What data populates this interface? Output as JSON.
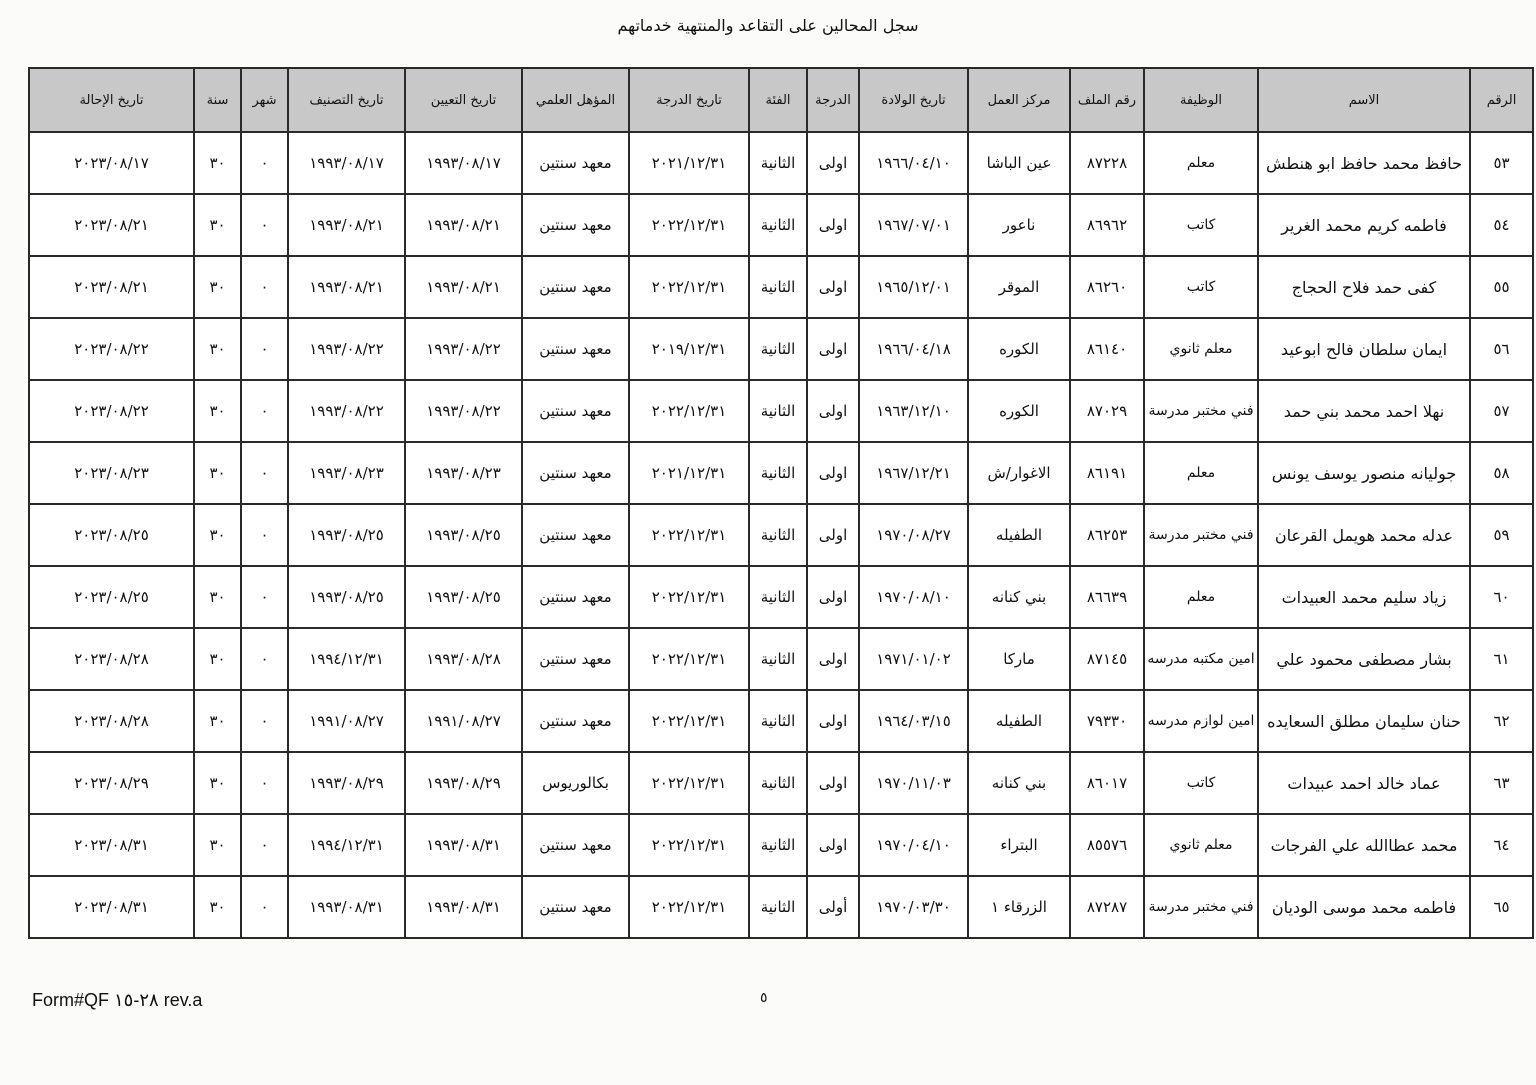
{
  "title": "سجل المحالين على التقاعد والمنتهية خدماتهم",
  "columns": [
    "الرقم",
    "الاسم",
    "الوظيفة",
    "رقم الملف",
    "مركز العمل",
    "تاريخ الولادة",
    "الدرجة",
    "الفئة",
    "تاريخ الدرجة",
    "المؤهل العلمي",
    "تاريخ التعيين",
    "تاريخ التصنيف",
    "شهر",
    "سنة",
    "تاريخ الإحالة"
  ],
  "rows": [
    [
      "٥٣",
      "حافظ محمد حافظ ابو هنطش",
      "معلم",
      "٨٧٢٢٨",
      "عين الباشا",
      "١٩٦٦/٠٤/١٠",
      "اولى",
      "الثانية",
      "٢٠٢١/١٢/٣١",
      "معهد سنتين",
      "١٩٩٣/٠٨/١٧",
      "١٩٩٣/٠٨/١٧",
      "٠",
      "٣٠",
      "٢٠٢٣/٠٨/١٧"
    ],
    [
      "٥٤",
      "فاطمه كريم محمد الغرير",
      "كاتب",
      "٨٦٩٦٢",
      "ناعور",
      "١٩٦٧/٠٧/٠١",
      "اولى",
      "الثانية",
      "٢٠٢٢/١٢/٣١",
      "معهد سنتين",
      "١٩٩٣/٠٨/٢١",
      "١٩٩٣/٠٨/٢١",
      "٠",
      "٣٠",
      "٢٠٢٣/٠٨/٢١"
    ],
    [
      "٥٥",
      "كفى حمد فلاح الحجاج",
      "كاتب",
      "٨٦٢٦٠",
      "الموقر",
      "١٩٦٥/١٢/٠١",
      "اولى",
      "الثانية",
      "٢٠٢٢/١٢/٣١",
      "معهد سنتين",
      "١٩٩٣/٠٨/٢١",
      "١٩٩٣/٠٨/٢١",
      "٠",
      "٣٠",
      "٢٠٢٣/٠٨/٢١"
    ],
    [
      "٥٦",
      "ايمان سلطان فالح ابوعيد",
      "معلم ثانوي",
      "٨٦١٤٠",
      "الكوره",
      "١٩٦٦/٠٤/١٨",
      "اولى",
      "الثانية",
      "٢٠١٩/١٢/٣١",
      "معهد سنتين",
      "١٩٩٣/٠٨/٢٢",
      "١٩٩٣/٠٨/٢٢",
      "٠",
      "٣٠",
      "٢٠٢٣/٠٨/٢٢"
    ],
    [
      "٥٧",
      "نهلا احمد محمد بني حمد",
      "فني مختبر مدرسة",
      "٨٧٠٢٩",
      "الكوره",
      "١٩٦٣/١٢/١٠",
      "اولى",
      "الثانية",
      "٢٠٢٢/١٢/٣١",
      "معهد سنتين",
      "١٩٩٣/٠٨/٢٢",
      "١٩٩٣/٠٨/٢٢",
      "٠",
      "٣٠",
      "٢٠٢٣/٠٨/٢٢"
    ],
    [
      "٥٨",
      "جوليانه منصور يوسف يونس",
      "معلم",
      "٨٦١٩١",
      "الاغوار/ش",
      "١٩٦٧/١٢/٢١",
      "اولى",
      "الثانية",
      "٢٠٢١/١٢/٣١",
      "معهد سنتين",
      "١٩٩٣/٠٨/٢٣",
      "١٩٩٣/٠٨/٢٣",
      "٠",
      "٣٠",
      "٢٠٢٣/٠٨/٢٣"
    ],
    [
      "٥٩",
      "عدله محمد هويمل القرعان",
      "فني مختبر مدرسة",
      "٨٦٢٥٣",
      "الطفيله",
      "١٩٧٠/٠٨/٢٧",
      "اولى",
      "الثانية",
      "٢٠٢٢/١٢/٣١",
      "معهد سنتين",
      "١٩٩٣/٠٨/٢٥",
      "١٩٩٣/٠٨/٢٥",
      "٠",
      "٣٠",
      "٢٠٢٣/٠٨/٢٥"
    ],
    [
      "٦٠",
      "زياد سليم محمد العبيدات",
      "معلم",
      "٨٦٦٣٩",
      "بني كنانه",
      "١٩٧٠/٠٨/١٠",
      "اولى",
      "الثانية",
      "٢٠٢٢/١٢/٣١",
      "معهد سنتين",
      "١٩٩٣/٠٨/٢٥",
      "١٩٩٣/٠٨/٢٥",
      "٠",
      "٣٠",
      "٢٠٢٣/٠٨/٢٥"
    ],
    [
      "٦١",
      "بشار مصطفى محمود علي",
      "امين مكتبه مدرسه",
      "٨٧١٤٥",
      "ماركا",
      "١٩٧١/٠١/٠٢",
      "اولى",
      "الثانية",
      "٢٠٢٢/١٢/٣١",
      "معهد سنتين",
      "١٩٩٣/٠٨/٢٨",
      "١٩٩٤/١٢/٣١",
      "٠",
      "٣٠",
      "٢٠٢٣/٠٨/٢٨"
    ],
    [
      "٦٢",
      "حنان سليمان مطلق السعايده",
      "امين لوازم مدرسه",
      "٧٩٣٣٠",
      "الطفيله",
      "١٩٦٤/٠٣/١٥",
      "اولى",
      "الثانية",
      "٢٠٢٢/١٢/٣١",
      "معهد سنتين",
      "١٩٩١/٠٨/٢٧",
      "١٩٩١/٠٨/٢٧",
      "٠",
      "٣٠",
      "٢٠٢٣/٠٨/٢٨"
    ],
    [
      "٦٣",
      "عماد خالد احمد عبيدات",
      "كاتب",
      "٨٦٠١٧",
      "بني كنانه",
      "١٩٧٠/١١/٠٣",
      "اولى",
      "الثانية",
      "٢٠٢٢/١٢/٣١",
      "بكالوريوس",
      "١٩٩٣/٠٨/٢٩",
      "١٩٩٣/٠٨/٢٩",
      "٠",
      "٣٠",
      "٢٠٢٣/٠٨/٢٩"
    ],
    [
      "٦٤",
      "محمد عطاالله علي الفرجات",
      "معلم ثانوي",
      "٨٥٥٧٦",
      "البتراء",
      "١٩٧٠/٠٤/١٠",
      "اولى",
      "الثانية",
      "٢٠٢٢/١٢/٣١",
      "معهد سنتين",
      "١٩٩٣/٠٨/٣١",
      "١٩٩٤/١٢/٣١",
      "٠",
      "٣٠",
      "٢٠٢٣/٠٨/٣١"
    ],
    [
      "٦٥",
      "فاطمه محمد موسى الوديان",
      "فني مختبر مدرسة",
      "٨٧٢٨٧",
      "الزرقاء ١",
      "١٩٧٠/٠٣/٣٠",
      "أولى",
      "الثانية",
      "٢٠٢٢/١٢/٣١",
      "معهد سنتين",
      "١٩٩٣/٠٨/٣١",
      "١٩٩٣/٠٨/٣١",
      "٠",
      "٣٠",
      "٢٠٢٣/٠٨/٣١"
    ]
  ],
  "footer": {
    "form_code": "Form#QF ٢٨-١٥ rev.a",
    "page_number": "٥"
  }
}
